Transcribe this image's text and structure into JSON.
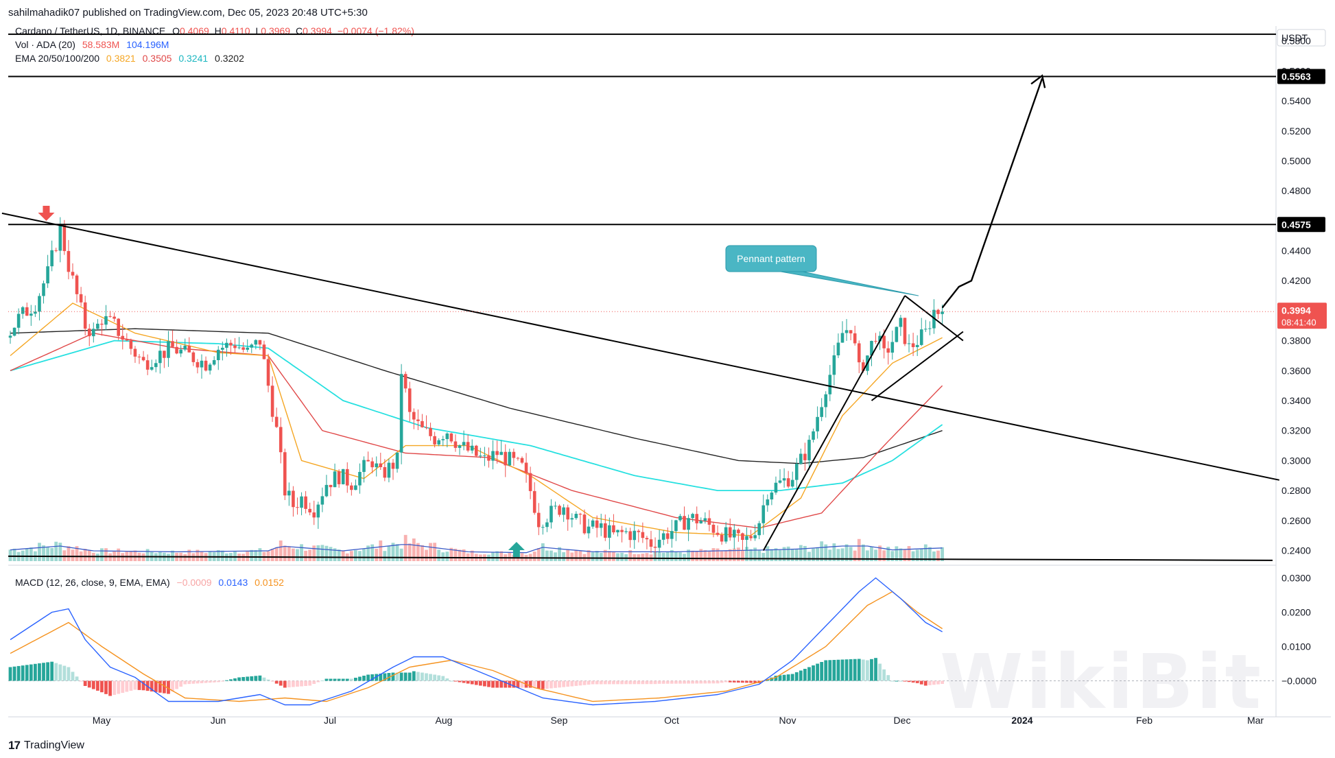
{
  "header": {
    "publisher_line": "sahilmahadik07 published on TradingView.com, Dec 05, 2023 20:48 UTC+5:30"
  },
  "legend": {
    "symbol": "Cardano / TetherUS, 1D, BINANCE",
    "o_label": "O",
    "o": "0.4069",
    "h_label": "H",
    "h": "0.4110",
    "l_label": "L",
    "l": "0.3969",
    "c_label": "C",
    "c": "0.3994",
    "change": "−0.0074 (−1.82%)",
    "vol_label": "Vol · ADA (20)",
    "vol1": "58.583M",
    "vol2": "104.196M",
    "ema_label": "EMA 20/50/100/200",
    "ema20": "0.3821",
    "ema50": "0.3505",
    "ema100": "0.3241",
    "ema200": "0.3202",
    "macd_label": "MACD (12, 26, close, 9, EMA, EMA)",
    "macd_hist": "−0.0009",
    "macd_line": "0.0143",
    "macd_signal": "0.0152"
  },
  "footer": {
    "brand": "TradingView",
    "watermark": "WikiBit"
  },
  "colors": {
    "up": "#26a69a",
    "down": "#ef5350",
    "ema20": "#f5a623",
    "ema50": "#e04848",
    "ema100": "#26e0e0",
    "ema200": "#222222",
    "macd": "#2962ff",
    "signal": "#f5921e"
  },
  "annotation": {
    "text": "Pennant pattern"
  },
  "chart_data": {
    "type": "candlestick",
    "currency": "USDT",
    "y_ticks": [
      "0.5800",
      "0.5600",
      "0.5400",
      "0.5200",
      "0.5000",
      "0.4800",
      "0.4600",
      "0.4400",
      "0.4200",
      "0.4000",
      "0.3800",
      "0.3600",
      "0.3400",
      "0.3200",
      "0.3000",
      "0.2800",
      "0.2600",
      "0.2400"
    ],
    "ylim": [
      0.232,
      0.589
    ],
    "x_ticks": [
      "May",
      "Jun",
      "Jul",
      "Aug",
      "Sep",
      "Oct",
      "Nov",
      "Dec",
      "2024",
      "Feb",
      "Mar"
    ],
    "price_labels": {
      "level_high": "0.5563",
      "level_mid": "0.4575",
      "last": "0.3994",
      "countdown": "08:41:40"
    },
    "horizontal_levels": [
      0.5845,
      0.5563,
      0.4575,
      0.2362
    ],
    "macd_ticks": [
      "0.0300",
      "0.0200",
      "0.0100",
      "−0.0000"
    ],
    "macd_ylim": [
      -0.0075,
      0.0325
    ],
    "price_path": [
      [
        0,
        0.382
      ],
      [
        3,
        0.395
      ],
      [
        7,
        0.405
      ],
      [
        10,
        0.425
      ],
      [
        13,
        0.455
      ],
      [
        15,
        0.43
      ],
      [
        17,
        0.41
      ],
      [
        19,
        0.39
      ],
      [
        21,
        0.385
      ],
      [
        23,
        0.395
      ],
      [
        26,
        0.39
      ],
      [
        30,
        0.375
      ],
      [
        33,
        0.365
      ],
      [
        36,
        0.37
      ],
      [
        40,
        0.375
      ],
      [
        44,
        0.37
      ],
      [
        48,
        0.365
      ],
      [
        51,
        0.375
      ],
      [
        55,
        0.378
      ],
      [
        58,
        0.372
      ],
      [
        61,
        0.38
      ],
      [
        63,
        0.35
      ],
      [
        65,
        0.32
      ],
      [
        67,
        0.28
      ],
      [
        69,
        0.27
      ],
      [
        71,
        0.275
      ],
      [
        74,
        0.268
      ],
      [
        77,
        0.285
      ],
      [
        80,
        0.29
      ],
      [
        83,
        0.285
      ],
      [
        86,
        0.295
      ],
      [
        88,
        0.3
      ],
      [
        90,
        0.29
      ],
      [
        92,
        0.295
      ],
      [
        94,
        0.3
      ],
      [
        95,
        0.36
      ],
      [
        97,
        0.33
      ],
      [
        100,
        0.32
      ],
      [
        103,
        0.315
      ],
      [
        106,
        0.32
      ],
      [
        109,
        0.31
      ],
      [
        112,
        0.305
      ],
      [
        115,
        0.3
      ],
      [
        118,
        0.305
      ],
      [
        121,
        0.3
      ],
      [
        124,
        0.295
      ],
      [
        126,
        0.28
      ],
      [
        128,
        0.26
      ],
      [
        131,
        0.265
      ],
      [
        134,
        0.27
      ],
      [
        137,
        0.26
      ],
      [
        140,
        0.255
      ],
      [
        143,
        0.255
      ],
      [
        146,
        0.25
      ],
      [
        149,
        0.252
      ],
      [
        152,
        0.25
      ],
      [
        155,
        0.245
      ],
      [
        158,
        0.25
      ],
      [
        161,
        0.255
      ],
      [
        164,
        0.262
      ],
      [
        167,
        0.26
      ],
      [
        170,
        0.255
      ],
      [
        173,
        0.25
      ],
      [
        175,
        0.248
      ],
      [
        177,
        0.245
      ],
      [
        179,
        0.25
      ],
      [
        181,
        0.26
      ],
      [
        183,
        0.28
      ],
      [
        186,
        0.285
      ],
      [
        189,
        0.29
      ],
      [
        191,
        0.3
      ],
      [
        193,
        0.31
      ],
      [
        195,
        0.33
      ],
      [
        197,
        0.35
      ],
      [
        199,
        0.365
      ],
      [
        201,
        0.385
      ],
      [
        203,
        0.39
      ],
      [
        205,
        0.36
      ],
      [
        207,
        0.37
      ],
      [
        209,
        0.385
      ],
      [
        211,
        0.37
      ],
      [
        213,
        0.38
      ],
      [
        215,
        0.39
      ],
      [
        217,
        0.375
      ],
      [
        219,
        0.38
      ],
      [
        221,
        0.385
      ],
      [
        223,
        0.4
      ],
      [
        224,
        0.3994
      ]
    ],
    "ema20_path": [
      [
        0,
        0.37
      ],
      [
        15,
        0.405
      ],
      [
        30,
        0.385
      ],
      [
        50,
        0.372
      ],
      [
        62,
        0.37
      ],
      [
        70,
        0.3
      ],
      [
        85,
        0.288
      ],
      [
        95,
        0.31
      ],
      [
        110,
        0.31
      ],
      [
        125,
        0.29
      ],
      [
        140,
        0.262
      ],
      [
        160,
        0.252
      ],
      [
        178,
        0.25
      ],
      [
        190,
        0.275
      ],
      [
        200,
        0.33
      ],
      [
        212,
        0.365
      ],
      [
        224,
        0.382
      ]
    ],
    "ema50_path": [
      [
        0,
        0.36
      ],
      [
        20,
        0.385
      ],
      [
        40,
        0.375
      ],
      [
        62,
        0.37
      ],
      [
        75,
        0.32
      ],
      [
        95,
        0.305
      ],
      [
        115,
        0.302
      ],
      [
        135,
        0.28
      ],
      [
        160,
        0.262
      ],
      [
        180,
        0.255
      ],
      [
        195,
        0.265
      ],
      [
        210,
        0.31
      ],
      [
        224,
        0.35
      ]
    ],
    "ema100_path": [
      [
        0,
        0.36
      ],
      [
        25,
        0.38
      ],
      [
        50,
        0.378
      ],
      [
        62,
        0.375
      ],
      [
        80,
        0.34
      ],
      [
        100,
        0.322
      ],
      [
        125,
        0.31
      ],
      [
        150,
        0.29
      ],
      [
        170,
        0.28
      ],
      [
        185,
        0.28
      ],
      [
        200,
        0.285
      ],
      [
        212,
        0.3
      ],
      [
        224,
        0.324
      ]
    ],
    "ema200_path": [
      [
        0,
        0.385
      ],
      [
        30,
        0.388
      ],
      [
        62,
        0.385
      ],
      [
        90,
        0.36
      ],
      [
        120,
        0.335
      ],
      [
        150,
        0.315
      ],
      [
        175,
        0.3
      ],
      [
        190,
        0.298
      ],
      [
        205,
        0.302
      ],
      [
        224,
        0.32
      ]
    ],
    "macd_path": [
      [
        0,
        0.012
      ],
      [
        10,
        0.02
      ],
      [
        14,
        0.021
      ],
      [
        18,
        0.012
      ],
      [
        24,
        0.004
      ],
      [
        30,
        0.001
      ],
      [
        38,
        -0.006
      ],
      [
        50,
        -0.006
      ],
      [
        60,
        -0.004
      ],
      [
        66,
        -0.007
      ],
      [
        72,
        -0.007
      ],
      [
        82,
        -0.003
      ],
      [
        92,
        0.004
      ],
      [
        97,
        0.007
      ],
      [
        104,
        0.007
      ],
      [
        112,
        0.003
      ],
      [
        120,
        -0.001
      ],
      [
        128,
        -0.005
      ],
      [
        140,
        -0.007
      ],
      [
        155,
        -0.006
      ],
      [
        170,
        -0.004
      ],
      [
        180,
        -0.001
      ],
      [
        188,
        0.006
      ],
      [
        196,
        0.016
      ],
      [
        204,
        0.026
      ],
      [
        208,
        0.03
      ],
      [
        214,
        0.024
      ],
      [
        220,
        0.017
      ],
      [
        224,
        0.0143
      ]
    ],
    "signal_path": [
      [
        0,
        0.008
      ],
      [
        14,
        0.017
      ],
      [
        22,
        0.01
      ],
      [
        32,
        0.002
      ],
      [
        42,
        -0.005
      ],
      [
        55,
        -0.006
      ],
      [
        66,
        -0.005
      ],
      [
        76,
        -0.006
      ],
      [
        86,
        -0.002
      ],
      [
        96,
        0.004
      ],
      [
        106,
        0.006
      ],
      [
        116,
        0.003
      ],
      [
        126,
        -0.002
      ],
      [
        140,
        -0.006
      ],
      [
        156,
        -0.005
      ],
      [
        172,
        -0.003
      ],
      [
        184,
        0.001
      ],
      [
        196,
        0.01
      ],
      [
        206,
        0.022
      ],
      [
        212,
        0.026
      ],
      [
        218,
        0.02
      ],
      [
        224,
        0.0152
      ]
    ],
    "volume_profile": [
      [
        0,
        0.6
      ],
      [
        12,
        1.0
      ],
      [
        20,
        0.5
      ],
      [
        40,
        0.4
      ],
      [
        62,
        0.5
      ],
      [
        65,
        1.0
      ],
      [
        80,
        0.5
      ],
      [
        95,
        1.2
      ],
      [
        110,
        0.4
      ],
      [
        125,
        0.3
      ],
      [
        127,
        0.9
      ],
      [
        140,
        0.4
      ],
      [
        160,
        0.4
      ],
      [
        170,
        0.5
      ],
      [
        183,
        0.6
      ],
      [
        190,
        0.7
      ],
      [
        200,
        1.0
      ],
      [
        206,
        1.0
      ],
      [
        212,
        0.6
      ],
      [
        224,
        0.8
      ]
    ],
    "trendlines": {
      "descending": [
        [
          -2,
          0.465
        ],
        [
          305,
          0.287
        ]
      ],
      "pennant_upper": [
        [
          215,
          0.41
        ],
        [
          229,
          0.38
        ]
      ],
      "pennant_lower": [
        [
          207,
          0.34
        ],
        [
          229,
          0.386
        ]
      ],
      "pole": [
        [
          181,
          0.24
        ],
        [
          215,
          0.41
        ]
      ],
      "projection": [
        [
          224,
          0.402
        ],
        [
          228,
          0.416
        ],
        [
          231,
          0.42
        ],
        [
          248,
          0.555
        ]
      ]
    },
    "markers": {
      "sell_arrow_index": 7,
      "buy_arrow_index": 121
    }
  }
}
